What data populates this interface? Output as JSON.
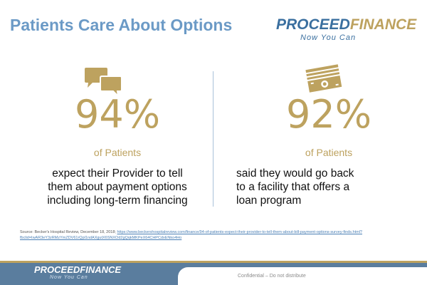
{
  "slide": {
    "title": "Patients Care About Options"
  },
  "logo": {
    "part1": "PROCEED",
    "part2": "FINANCE",
    "tagline": "Now You Can"
  },
  "stats": [
    {
      "icon": "chat-bubbles-icon",
      "percent": "94%",
      "label": "of Patients",
      "lines": [
        "expect their Provider to tell",
        "them about payment options",
        "including long-term financing"
      ]
    },
    {
      "icon": "money-stack-icon",
      "percent": "92%",
      "label": "of Patients",
      "lines": [
        "said they would go back",
        "to a facility that offers a",
        "loan program"
      ]
    }
  ],
  "source": {
    "prefix": "Source: Becker's Hospital Review, December 18, 2018; ",
    "link": "https://www.beckershospitalreview.com/finance/94-of-patients-expect-their-provider-to-tell-them-about-bill-payment-options-survey-finds.html?fbclid=IwAR3eY3zRMzYmZDV61rQpl1ndAXgutX6SNXOd2gQqkMKPeX64CHPCdxENko4Ho"
  },
  "footer": {
    "confidential": "Confidential – Do not distribute"
  },
  "colors": {
    "title": "#6b9ac6",
    "gold": "#bda25f",
    "blue": "#3a6f9f",
    "footer": "#5a7d9e"
  }
}
